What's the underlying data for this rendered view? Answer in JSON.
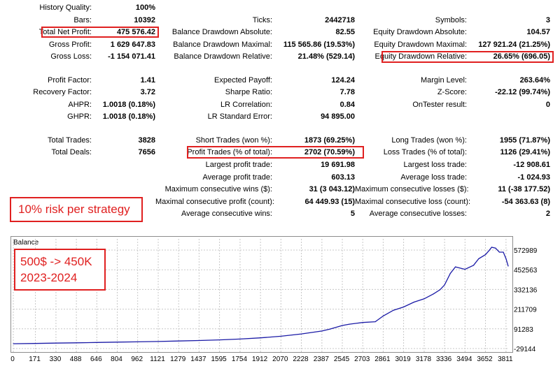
{
  "report": {
    "rows": [
      {
        "top": 3,
        "c1": [
          "History Quality:",
          "100%"
        ],
        "c2": null,
        "c3": null
      },
      {
        "top": 21,
        "c1": [
          "Bars:",
          "10392"
        ],
        "c2": [
          "Ticks:",
          "2442718"
        ],
        "c3": [
          "Symbols:",
          "3"
        ]
      },
      {
        "top": 38,
        "c1": [
          "Total Net Profit:",
          "475 576.42"
        ],
        "c2": [
          "Balance Drawdown Absolute:",
          "82.55"
        ],
        "c3": [
          "Equity Drawdown Absolute:",
          "104.57"
        ]
      },
      {
        "top": 56,
        "c1": [
          "Gross Profit:",
          "1 629 647.83"
        ],
        "c2": [
          "Balance Drawdown Maximal:",
          "115 565.86 (19.53%)"
        ],
        "c3": [
          "Equity Drawdown Maximal:",
          "127 921.24 (21.25%)"
        ]
      },
      {
        "top": 73,
        "c1": [
          "Gross Loss:",
          "-1 154 071.41"
        ],
        "c2": [
          "Balance Drawdown Relative:",
          "21.48% (529.14)"
        ],
        "c3": [
          "Equity Drawdown Relative:",
          "26.65% (696.05)"
        ]
      },
      {
        "top": 107,
        "c1": [
          "Profit Factor:",
          "1.41"
        ],
        "c2": [
          "Expected Payoff:",
          "124.24"
        ],
        "c3": [
          "Margin Level:",
          "263.64%"
        ]
      },
      {
        "top": 124,
        "c1": [
          "Recovery Factor:",
          "3.72"
        ],
        "c2": [
          "Sharpe Ratio:",
          "7.78"
        ],
        "c3": [
          "Z-Score:",
          "-22.12 (99.74%)"
        ]
      },
      {
        "top": 142,
        "c1": [
          "AHPR:",
          "1.0018 (0.18%)"
        ],
        "c2": [
          "LR Correlation:",
          "0.84"
        ],
        "c3": [
          "OnTester result:",
          "0"
        ]
      },
      {
        "top": 159,
        "c1": [
          "GHPR:",
          "1.0018 (0.18%)"
        ],
        "c2": [
          "LR Standard Error:",
          "94 895.00"
        ],
        "c3": null
      },
      {
        "top": 193,
        "c1": [
          "Total Trades:",
          "3828"
        ],
        "c2": [
          "Short Trades (won %):",
          "1873 (69.25%)"
        ],
        "c3": [
          "Long Trades (won %):",
          "1955 (71.87%)"
        ]
      },
      {
        "top": 210,
        "c1": [
          "Total Deals:",
          "7656"
        ],
        "c2": [
          "Profit Trades (% of total):",
          "2702 (70.59%)"
        ],
        "c3": [
          "Loss Trades (% of total):",
          "1126 (29.41%)"
        ]
      },
      {
        "top": 228,
        "c1": null,
        "c2": [
          "Largest profit trade:",
          "19 691.98"
        ],
        "c3": [
          "Largest loss trade:",
          "-12 908.61"
        ]
      },
      {
        "top": 246,
        "c1": null,
        "c2": [
          "Average profit trade:",
          "603.13"
        ],
        "c3": [
          "Average loss trade:",
          "-1 024.93"
        ]
      },
      {
        "top": 263,
        "c1": null,
        "c2": [
          "Maximum consecutive wins ($):",
          "31 (3 043.12)"
        ],
        "c3": [
          "Maximum consecutive losses ($):",
          "11 (-38 177.52)"
        ]
      },
      {
        "top": 281,
        "c1": null,
        "c2": [
          "Maximal consecutive profit (count):",
          "64 449.93 (15)"
        ],
        "c3": [
          "Maximal consecutive loss (count):",
          "-54 363.63 (8)"
        ]
      },
      {
        "top": 298,
        "c1": null,
        "c2": [
          "Average consecutive wins:",
          "5"
        ],
        "c3": [
          "Average consecutive losses:",
          "2"
        ]
      }
    ]
  },
  "annotations": {
    "risk_note": "10% risk per strategy",
    "growth_line1": "500$ -> 450K",
    "growth_line2": "2023-2024"
  },
  "colors": {
    "highlight": "#e02020",
    "series": "#1a1aa6",
    "grid": "#c8c8c8"
  },
  "chart_data": {
    "type": "line",
    "title": "Balance",
    "xlabel": "",
    "ylabel": "",
    "x_ticks": [
      0,
      171,
      330,
      488,
      646,
      804,
      962,
      1121,
      1279,
      1437,
      1595,
      1754,
      1912,
      2070,
      2228,
      2387,
      2545,
      2703,
      2861,
      3019,
      3178,
      3336,
      3494,
      3652,
      3811
    ],
    "y_ticks": [
      -29144,
      91283,
      211709,
      332136,
      452563,
      572989
    ],
    "xlim": [
      0,
      3828
    ],
    "ylim": [
      -29144,
      620000
    ],
    "grid": true,
    "series": [
      {
        "name": "",
        "x": [
          0,
          171,
          330,
          488,
          646,
          804,
          962,
          1121,
          1279,
          1437,
          1595,
          1754,
          1912,
          2070,
          2228,
          2387,
          2450,
          2545,
          2600,
          2703,
          2800,
          2861,
          2940,
          3019,
          3100,
          3178,
          3250,
          3300,
          3336,
          3380,
          3420,
          3494,
          3560,
          3600,
          3652,
          3680,
          3700,
          3730,
          3760,
          3790,
          3811,
          3828
        ],
        "y": [
          500,
          2000,
          4000,
          6000,
          8000,
          10000,
          12000,
          14000,
          17000,
          20000,
          24000,
          29000,
          36000,
          46000,
          60000,
          78000,
          90000,
          112000,
          120000,
          130000,
          135000,
          170000,
          205000,
          225000,
          255000,
          275000,
          305000,
          330000,
          360000,
          430000,
          470000,
          455000,
          480000,
          520000,
          545000,
          570000,
          590000,
          585000,
          560000,
          560000,
          520000,
          475000
        ]
      }
    ]
  }
}
